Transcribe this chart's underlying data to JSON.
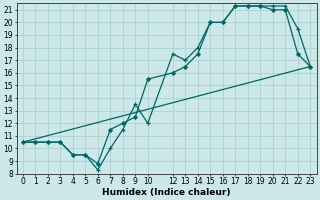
{
  "xlabel": "Humidex (Indice chaleur)",
  "bg_color": "#cce8e8",
  "grid_color": "#aacccc",
  "line_color": "#006666",
  "xmin": -0.5,
  "xmax": 23.5,
  "ymin": 8,
  "ymax": 21.5,
  "line1_x": [
    0,
    1,
    2,
    3,
    4,
    5,
    6,
    7,
    8,
    9,
    10,
    12,
    13,
    14,
    15,
    16,
    17,
    18,
    19,
    20,
    21,
    22,
    23
  ],
  "line1_y": [
    10.5,
    10.5,
    10.5,
    10.5,
    9.5,
    9.5,
    8.3,
    10.0,
    11.5,
    13.5,
    12.0,
    17.5,
    17.0,
    18.0,
    20.0,
    20.0,
    21.3,
    21.3,
    21.3,
    21.3,
    21.3,
    19.5,
    16.5
  ],
  "line2_x": [
    0,
    1,
    2,
    3,
    4,
    5,
    6,
    7,
    8,
    9,
    10,
    12,
    13,
    14,
    15,
    16,
    17,
    18,
    19,
    20,
    21,
    22,
    23
  ],
  "line2_y": [
    10.5,
    10.5,
    10.5,
    10.5,
    9.5,
    9.5,
    8.8,
    11.5,
    12.0,
    12.5,
    15.5,
    16.0,
    16.5,
    17.5,
    20.0,
    20.0,
    21.3,
    21.3,
    21.3,
    21.0,
    21.0,
    17.5,
    16.5
  ],
  "line3_x": [
    0,
    23
  ],
  "line3_y": [
    10.5,
    16.5
  ],
  "x_ticks": [
    0,
    1,
    2,
    3,
    4,
    5,
    6,
    7,
    8,
    9,
    10,
    12,
    13,
    14,
    15,
    16,
    17,
    18,
    19,
    20,
    21,
    22,
    23
  ],
  "x_tick_labels": [
    "0",
    "1",
    "2",
    "3",
    "4",
    "5",
    "6",
    "7",
    "8",
    "9",
    "10",
    "12",
    "13",
    "14",
    "15",
    "16",
    "17",
    "18",
    "19",
    "20",
    "21",
    "22",
    "23"
  ],
  "y_ticks": [
    8,
    9,
    10,
    11,
    12,
    13,
    14,
    15,
    16,
    17,
    18,
    19,
    20,
    21
  ],
  "tick_fontsize": 5.5,
  "xlabel_fontsize": 6.5
}
